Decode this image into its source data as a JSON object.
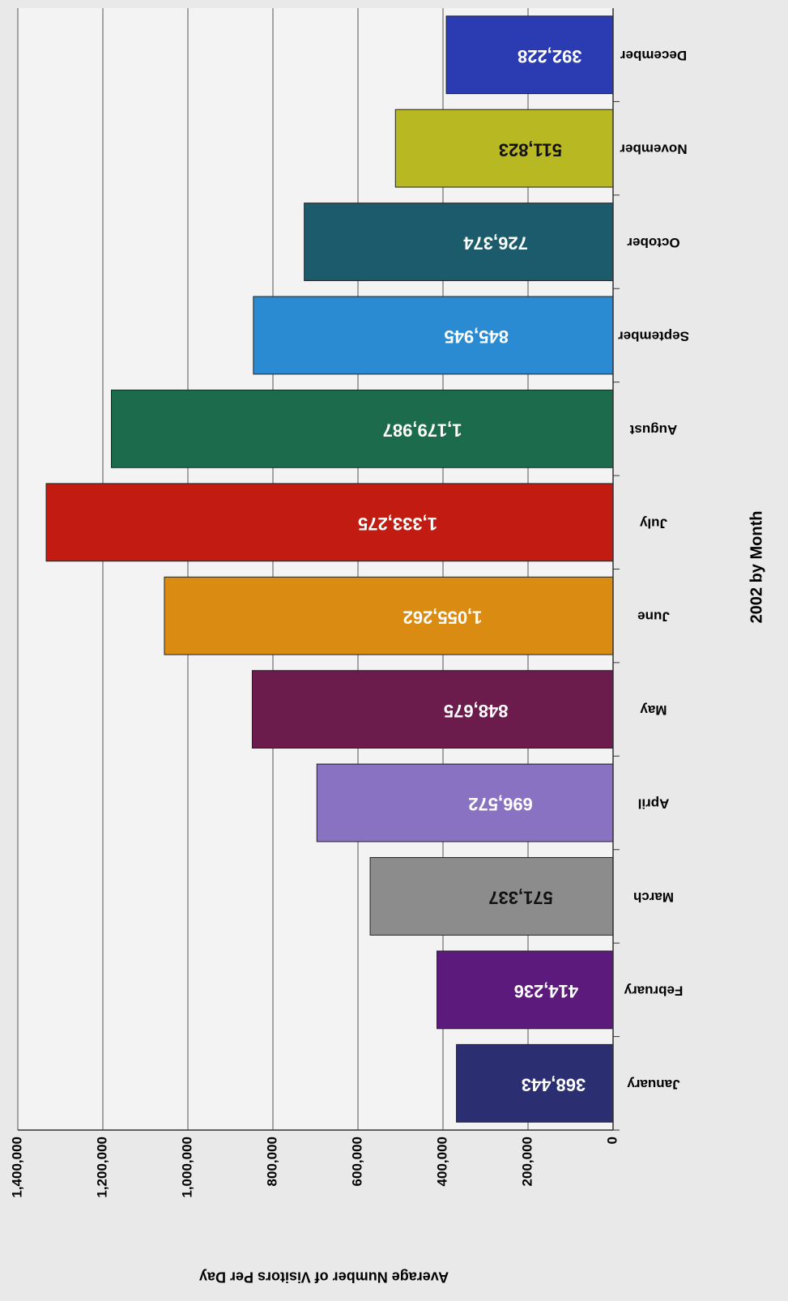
{
  "chart_data": {
    "type": "bar",
    "x_label": "2002 by Month",
    "y_label": "Average Number of Visitors Per Day",
    "categories": [
      "January",
      "February",
      "March",
      "April",
      "May",
      "June",
      "July",
      "August",
      "September",
      "October",
      "November",
      "December"
    ],
    "values": [
      368443,
      414236,
      571337,
      696572,
      848675,
      1055262,
      1333275,
      1179987,
      845945,
      726374,
      511823,
      392228
    ],
    "value_labels": [
      "368,443",
      "414,236",
      "571,337",
      "696,572",
      "848,675",
      "1,055,262",
      "1,333,275",
      "1,179,987",
      "845,945",
      "726,374",
      "511,823",
      "392,228"
    ],
    "colors": [
      "#2b2f72",
      "#5c1b7c",
      "#8c8c8c",
      "#8a72c2",
      "#6b1b4c",
      "#d98b12",
      "#c21c12",
      "#1b6b4c",
      "#2b8bd2",
      "#1b5b6b",
      "#b8b822",
      "#2b3bb2"
    ],
    "ylim": [
      0,
      1400000
    ],
    "yticks": [
      0,
      {
        "value": 200000,
        "label": "200,000"
      },
      {
        "value": 400000,
        "label": "400,000"
      },
      {
        "value": 600000,
        "label": "600,000"
      },
      {
        "value": 800000,
        "label": "800,000"
      },
      {
        "value": 1000000,
        "label": "1,000,000"
      },
      {
        "value": 1200000,
        "label": "1,200,000"
      },
      {
        "value": 1400000,
        "label": "1,400,000"
      }
    ],
    "grid": true
  }
}
